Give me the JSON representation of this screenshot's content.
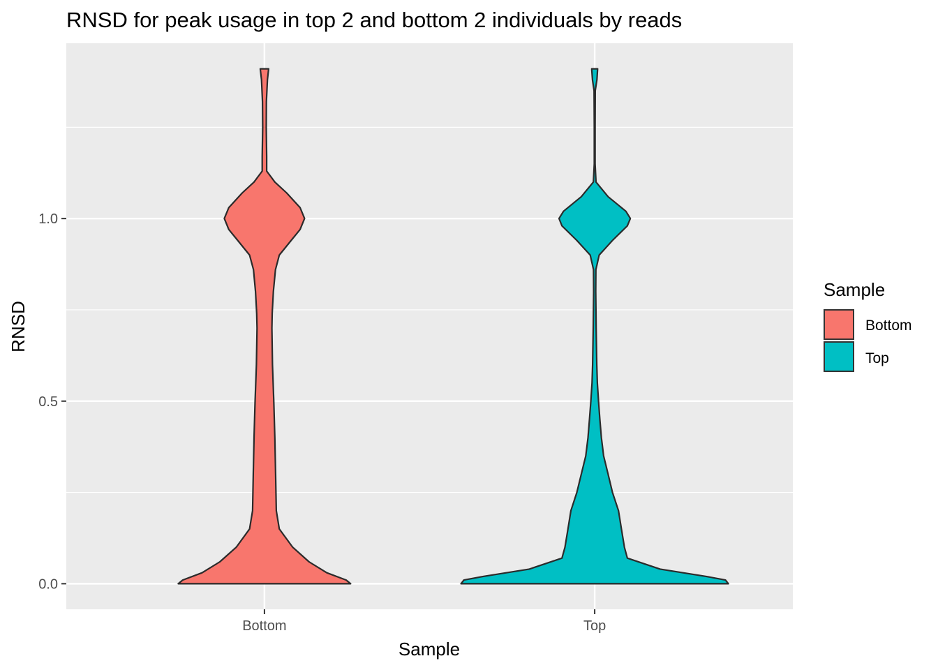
{
  "chart_data": {
    "type": "violin",
    "title": "RNSD for peak usage in top 2 and bottom 2 individuals by reads",
    "xlabel": "Sample",
    "ylabel": "RNSD",
    "categories": [
      "Bottom",
      "Top"
    ],
    "y_ticks": [
      "0.0",
      "0.5",
      "1.0"
    ],
    "y_tick_values": [
      0,
      0.5,
      1.0
    ],
    "ylim": [
      -0.07,
      1.48
    ],
    "grid": true,
    "legend": {
      "title": "Sample",
      "position": "right",
      "entries": [
        "Bottom",
        "Top"
      ]
    },
    "series": [
      {
        "category": "Bottom",
        "color": "#F8766D",
        "y_range": [
          0,
          1.41
        ],
        "density_profile": [
          [
            0.0,
            0.58
          ],
          [
            0.01,
            0.55
          ],
          [
            0.03,
            0.42
          ],
          [
            0.06,
            0.3
          ],
          [
            0.1,
            0.19
          ],
          [
            0.15,
            0.1
          ],
          [
            0.2,
            0.08
          ],
          [
            0.3,
            0.075
          ],
          [
            0.4,
            0.07
          ],
          [
            0.5,
            0.063
          ],
          [
            0.6,
            0.054
          ],
          [
            0.7,
            0.05
          ],
          [
            0.74,
            0.052
          ],
          [
            0.8,
            0.06
          ],
          [
            0.86,
            0.074
          ],
          [
            0.9,
            0.1
          ],
          [
            0.94,
            0.18
          ],
          [
            0.97,
            0.24
          ],
          [
            1.0,
            0.27
          ],
          [
            1.03,
            0.24
          ],
          [
            1.07,
            0.15
          ],
          [
            1.1,
            0.07
          ],
          [
            1.13,
            0.015
          ],
          [
            1.17,
            0.015
          ],
          [
            1.25,
            0.012
          ],
          [
            1.32,
            0.013
          ],
          [
            1.38,
            0.02
          ],
          [
            1.41,
            0.028
          ]
        ]
      },
      {
        "category": "Top",
        "color": "#00BFC4",
        "y_range": [
          0,
          1.41
        ],
        "density_profile": [
          [
            0.0,
            0.9
          ],
          [
            0.01,
            0.88
          ],
          [
            0.02,
            0.75
          ],
          [
            0.04,
            0.44
          ],
          [
            0.07,
            0.22
          ],
          [
            0.1,
            0.2
          ],
          [
            0.15,
            0.18
          ],
          [
            0.2,
            0.16
          ],
          [
            0.25,
            0.12
          ],
          [
            0.3,
            0.09
          ],
          [
            0.35,
            0.06
          ],
          [
            0.4,
            0.045
          ],
          [
            0.45,
            0.035
          ],
          [
            0.5,
            0.026
          ],
          [
            0.55,
            0.018
          ],
          [
            0.6,
            0.014
          ],
          [
            0.7,
            0.01
          ],
          [
            0.8,
            0.007
          ],
          [
            0.86,
            0.008
          ],
          [
            0.9,
            0.03
          ],
          [
            0.94,
            0.12
          ],
          [
            0.98,
            0.22
          ],
          [
            1.0,
            0.24
          ],
          [
            1.02,
            0.21
          ],
          [
            1.06,
            0.09
          ],
          [
            1.1,
            0.009
          ],
          [
            1.15,
            0.003
          ],
          [
            1.25,
            0.003
          ],
          [
            1.35,
            0.004
          ],
          [
            1.38,
            0.015
          ],
          [
            1.41,
            0.02
          ]
        ]
      }
    ]
  }
}
